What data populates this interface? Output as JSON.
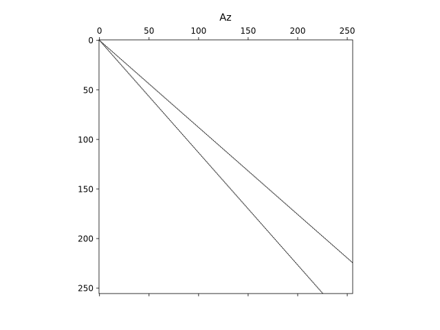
{
  "chart_data": {
    "type": "scatter",
    "subtype": "sparsity-pattern",
    "title": "Az",
    "xlabel": "",
    "ylabel": "",
    "matrix_size": [
      256,
      256
    ],
    "xlim": [
      -0.5,
      255.5
    ],
    "ylim": [
      255.5,
      -0.5
    ],
    "x_axis_position": "top",
    "y_axis_inverted": true,
    "grid": false,
    "legend": "none",
    "xticks": [
      0,
      50,
      100,
      150,
      200,
      250
    ],
    "yticks": [
      0,
      50,
      100,
      150,
      200,
      250
    ],
    "xtick_labels": [
      "0",
      "50",
      "100",
      "150",
      "200",
      "250"
    ],
    "ytick_labels": [
      "0",
      "50",
      "100",
      "150",
      "200",
      "250"
    ],
    "series": [
      {
        "points": [
          [
            0,
            0
          ],
          [
            255,
            224
          ]
        ]
      },
      {
        "points": [
          [
            0,
            0
          ],
          [
            225,
            255
          ]
        ]
      }
    ],
    "colors": {
      "marker": "#000000",
      "axes": "#000000",
      "background": "#ffffff"
    }
  }
}
